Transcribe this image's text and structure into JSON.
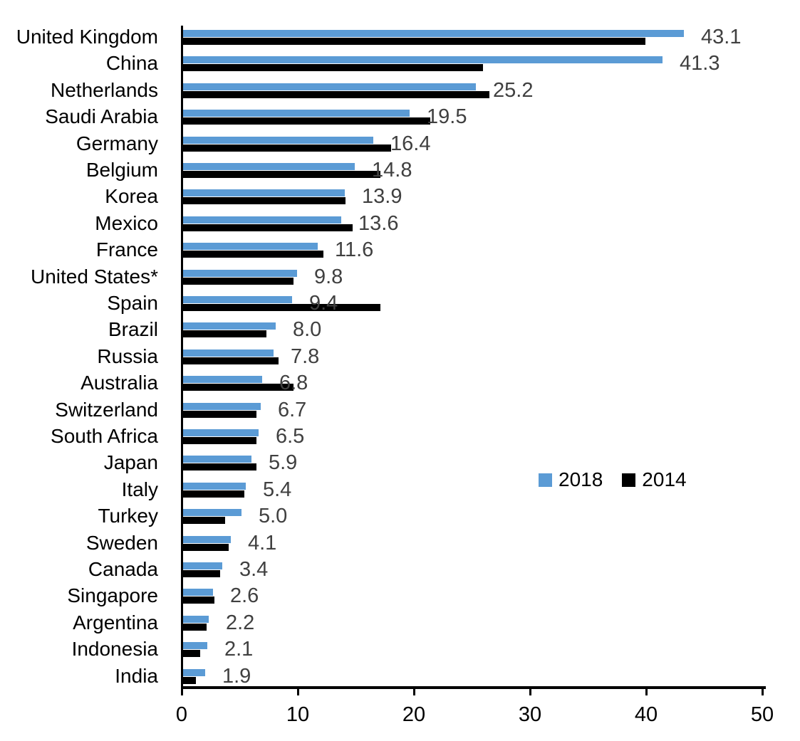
{
  "chart_data": {
    "type": "bar",
    "orientation": "horizontal",
    "title": "",
    "categories": [
      "United Kingdom",
      "China",
      "Netherlands",
      "Saudi Arabia",
      "Germany",
      "Belgium",
      "Korea",
      "Mexico",
      "France",
      "United States*",
      "Spain",
      "Brazil",
      "Russia",
      "Australia",
      "Switzerland",
      "South Africa",
      "Japan",
      "Italy",
      "Turkey",
      "Sweden",
      "Canada",
      "Singapore",
      "Argentina",
      "Indonesia",
      "India"
    ],
    "series": [
      {
        "name": "2018",
        "color": "#5B9BD5",
        "values": [
          43.1,
          41.3,
          25.2,
          19.5,
          16.4,
          14.8,
          13.9,
          13.6,
          11.6,
          9.8,
          9.4,
          8.0,
          7.8,
          6.8,
          6.7,
          6.5,
          5.9,
          5.4,
          5.0,
          4.1,
          3.4,
          2.6,
          2.2,
          2.1,
          1.9
        ]
      },
      {
        "name": "2014",
        "color": "#000000",
        "values": [
          39.8,
          25.8,
          26.4,
          21.3,
          17.9,
          17.0,
          14.0,
          14.6,
          12.1,
          9.5,
          17.0,
          7.2,
          8.2,
          9.5,
          6.3,
          6.3,
          6.3,
          5.3,
          3.6,
          3.9,
          3.2,
          2.7,
          2.0,
          1.5,
          1.1
        ]
      }
    ],
    "value_labels": {
      "labeled_series": "2018",
      "texts": [
        "43.1",
        "41.3",
        "25.2",
        "19.5",
        "16.4",
        "14.8",
        "13.9",
        "13.6",
        "11.6",
        "9.8",
        "9.4",
        "8.0",
        "7.8",
        "6.8",
        "6.7",
        "6.5",
        "5.9",
        "5.4",
        "5.0",
        "4.1",
        "3.4",
        "2.6",
        "2.2",
        "2.1",
        "1.9"
      ],
      "color": "#404040"
    },
    "xlim": [
      0,
      50
    ],
    "x_ticks": [
      "0",
      "10",
      "20",
      "30",
      "40",
      "50"
    ],
    "grid": false,
    "legend": {
      "position": "center-right",
      "items": [
        {
          "label": "2018",
          "color": "#5B9BD5"
        },
        {
          "label": "2014",
          "color": "#000000"
        }
      ]
    },
    "axis_color": "#000000"
  }
}
